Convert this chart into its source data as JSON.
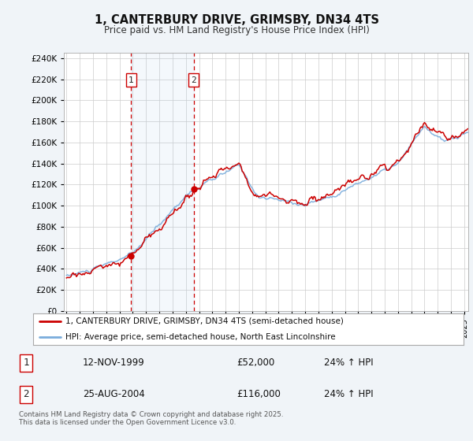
{
  "title": "1, CANTERBURY DRIVE, GRIMSBY, DN34 4TS",
  "subtitle": "Price paid vs. HM Land Registry's House Price Index (HPI)",
  "legend_line1": "1, CANTERBURY DRIVE, GRIMSBY, DN34 4TS (semi-detached house)",
  "legend_line2": "HPI: Average price, semi-detached house, North East Lincolnshire",
  "sale1_label": "1",
  "sale1_date": "12-NOV-1999",
  "sale1_price": "£52,000",
  "sale1_hpi": "24% ↑ HPI",
  "sale2_label": "2",
  "sale2_date": "25-AUG-2004",
  "sale2_price": "£116,000",
  "sale2_hpi": "24% ↑ HPI",
  "footer": "Contains HM Land Registry data © Crown copyright and database right 2025.\nThis data is licensed under the Open Government Licence v3.0.",
  "hpi_color": "#7aaddc",
  "price_color": "#cc0000",
  "sale_marker_color": "#cc0000",
  "vline_color": "#cc0000",
  "background_color": "#f0f4f8",
  "plot_bg_color": "#ffffff",
  "grid_color": "#cccccc",
  "ylim_min": 0,
  "ylim_max": 245000,
  "ytick_step": 20000,
  "sale1_t": 1999.875,
  "sale2_t": 2004.583,
  "price_sale1": 52000,
  "price_sale2": 116000
}
